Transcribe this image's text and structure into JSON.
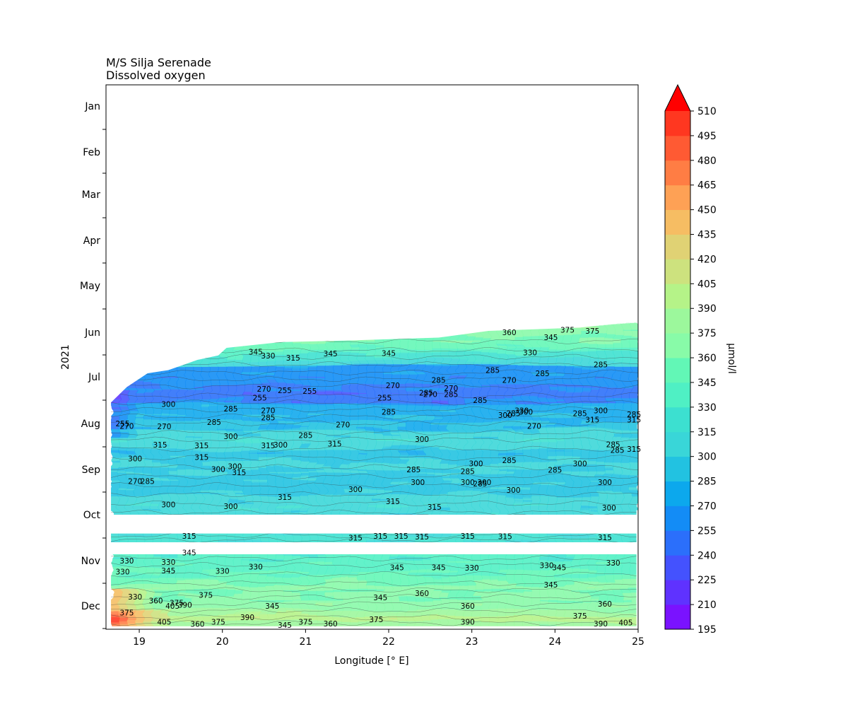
{
  "chart_data": {
    "type": "heatmap",
    "title_line1": "M/S Silja Serenade",
    "title_line2": "Dissolved oxygen",
    "xlabel": "Longitude [° E]",
    "ylabel": "2021",
    "xlim": [
      18.6,
      25.0
    ],
    "x_ticks": [
      "19",
      "20",
      "21",
      "22",
      "23",
      "24",
      "25"
    ],
    "y_ticks": [
      "Jan",
      "Feb",
      "Mar",
      "Apr",
      "May",
      "Jun",
      "Jul",
      "Aug",
      "Sep",
      "Oct",
      "Nov",
      "Dec"
    ],
    "colorbar": {
      "label": "µmol/l",
      "levels": [
        195,
        210,
        225,
        240,
        255,
        270,
        285,
        300,
        315,
        330,
        345,
        360,
        375,
        390,
        405,
        420,
        435,
        450,
        465,
        480,
        495,
        510
      ],
      "extend": "max",
      "colors": [
        "#7a12ff",
        "#5f32ff",
        "#4452fe",
        "#2b6ffb",
        "#138cf6",
        "#0ca8ed",
        "#22c2e1",
        "#39d6d8",
        "#3ce0d0",
        "#4ff0c4",
        "#62f7b6",
        "#88fba8",
        "#9cf89c",
        "#b5f388",
        "#cde27e",
        "#e0d274",
        "#f6bd63",
        "#fea155",
        "#ff7d44",
        "#ff5a33",
        "#ff3720",
        "#ff1410"
      ],
      "extend_color": "#ff0000"
    },
    "data_bands": [
      {
        "period": "Jun-Oct",
        "start_month": 5.0,
        "end_month": 9.0
      },
      {
        "period": "Oct",
        "start_month": 9.4,
        "end_month": 9.6
      },
      {
        "period": "Nov-Dec",
        "start_month": 9.85,
        "end_month": 11.5
      }
    ],
    "contour_labels": [
      {
        "text": "375",
        "lon": 24.15,
        "m": 4.95
      },
      {
        "text": "375",
        "lon": 24.45,
        "m": 4.97
      },
      {
        "text": "360",
        "lon": 23.45,
        "m": 5.0
      },
      {
        "text": "345",
        "lon": 23.95,
        "m": 5.11
      },
      {
        "text": "345",
        "lon": 20.4,
        "m": 5.44
      },
      {
        "text": "330",
        "lon": 20.55,
        "m": 5.52
      },
      {
        "text": "315",
        "lon": 20.85,
        "m": 5.57
      },
      {
        "text": "345",
        "lon": 21.3,
        "m": 5.48
      },
      {
        "text": "345",
        "lon": 22.0,
        "m": 5.47
      },
      {
        "text": "330",
        "lon": 23.7,
        "m": 5.45
      },
      {
        "text": "285",
        "lon": 24.55,
        "m": 5.72
      },
      {
        "text": "285",
        "lon": 23.25,
        "m": 5.85
      },
      {
        "text": "285",
        "lon": 23.85,
        "m": 5.92
      },
      {
        "text": "270",
        "lon": 23.45,
        "m": 6.07
      },
      {
        "text": "285",
        "lon": 22.6,
        "m": 6.07
      },
      {
        "text": "270",
        "lon": 22.75,
        "m": 6.24
      },
      {
        "text": "285",
        "lon": 22.45,
        "m": 6.34
      },
      {
        "text": "270",
        "lon": 22.5,
        "m": 6.37
      },
      {
        "text": "285",
        "lon": 22.75,
        "m": 6.37
      },
      {
        "text": "270",
        "lon": 22.05,
        "m": 6.18
      },
      {
        "text": "255",
        "lon": 21.05,
        "m": 6.3
      },
      {
        "text": "255",
        "lon": 20.75,
        "m": 6.29
      },
      {
        "text": "270",
        "lon": 20.5,
        "m": 6.26
      },
      {
        "text": "255",
        "lon": 20.45,
        "m": 6.45
      },
      {
        "text": "255",
        "lon": 21.95,
        "m": 6.45
      },
      {
        "text": "285",
        "lon": 23.1,
        "m": 6.5
      },
      {
        "text": "285",
        "lon": 20.1,
        "m": 6.68
      },
      {
        "text": "270",
        "lon": 20.55,
        "m": 6.72
      },
      {
        "text": "285",
        "lon": 20.55,
        "m": 6.87
      },
      {
        "text": "285",
        "lon": 22.0,
        "m": 6.75
      },
      {
        "text": "300",
        "lon": 23.4,
        "m": 6.82
      },
      {
        "text": "285",
        "lon": 23.5,
        "m": 6.78
      },
      {
        "text": "330",
        "lon": 23.6,
        "m": 6.72
      },
      {
        "text": "300",
        "lon": 23.65,
        "m": 6.75
      },
      {
        "text": "285",
        "lon": 24.3,
        "m": 6.78
      },
      {
        "text": "300",
        "lon": 24.55,
        "m": 6.72
      },
      {
        "text": "285",
        "lon": 24.95,
        "m": 6.8
      },
      {
        "text": "315",
        "lon": 24.45,
        "m": 6.92
      },
      {
        "text": "315",
        "lon": 24.95,
        "m": 6.92
      },
      {
        "text": "270",
        "lon": 21.45,
        "m": 7.02
      },
      {
        "text": "270",
        "lon": 23.75,
        "m": 7.05
      },
      {
        "text": "300",
        "lon": 19.35,
        "m": 6.58
      },
      {
        "text": "255",
        "lon": 18.8,
        "m": 7.0
      },
      {
        "text": "270",
        "lon": 18.85,
        "m": 7.05
      },
      {
        "text": "270",
        "lon": 19.3,
        "m": 7.06
      },
      {
        "text": "285",
        "lon": 19.9,
        "m": 6.97
      },
      {
        "text": "300",
        "lon": 20.1,
        "m": 7.28
      },
      {
        "text": "285",
        "lon": 21.0,
        "m": 7.25
      },
      {
        "text": "315",
        "lon": 19.25,
        "m": 7.46
      },
      {
        "text": "315",
        "lon": 19.75,
        "m": 7.48
      },
      {
        "text": "315",
        "lon": 20.55,
        "m": 7.48
      },
      {
        "text": "300",
        "lon": 20.7,
        "m": 7.46
      },
      {
        "text": "315",
        "lon": 21.35,
        "m": 7.44
      },
      {
        "text": "300",
        "lon": 22.4,
        "m": 7.34
      },
      {
        "text": "285",
        "lon": 24.7,
        "m": 7.45
      },
      {
        "text": "285",
        "lon": 24.75,
        "m": 7.58
      },
      {
        "text": "315",
        "lon": 24.95,
        "m": 7.55
      },
      {
        "text": "300",
        "lon": 18.95,
        "m": 7.76
      },
      {
        "text": "315",
        "lon": 19.75,
        "m": 7.73
      },
      {
        "text": "300",
        "lon": 19.95,
        "m": 7.99
      },
      {
        "text": "300",
        "lon": 20.15,
        "m": 7.93
      },
      {
        "text": "315",
        "lon": 20.2,
        "m": 8.06
      },
      {
        "text": "285",
        "lon": 22.3,
        "m": 8.0
      },
      {
        "text": "300",
        "lon": 23.05,
        "m": 7.87
      },
      {
        "text": "285",
        "lon": 22.95,
        "m": 8.04
      },
      {
        "text": "285",
        "lon": 23.45,
        "m": 7.8
      },
      {
        "text": "285",
        "lon": 24.0,
        "m": 8.01
      },
      {
        "text": "300",
        "lon": 24.3,
        "m": 7.87
      },
      {
        "text": "270",
        "lon": 18.95,
        "m": 8.26
      },
      {
        "text": "285",
        "lon": 19.1,
        "m": 8.26
      },
      {
        "text": "300",
        "lon": 22.35,
        "m": 8.28
      },
      {
        "text": "300",
        "lon": 22.95,
        "m": 8.28
      },
      {
        "text": "285",
        "lon": 23.1,
        "m": 8.31
      },
      {
        "text": "300",
        "lon": 23.15,
        "m": 8.28
      },
      {
        "text": "300",
        "lon": 24.6,
        "m": 8.28
      },
      {
        "text": "300",
        "lon": 21.6,
        "m": 8.44
      },
      {
        "text": "300",
        "lon": 23.5,
        "m": 8.45
      },
      {
        "text": "315",
        "lon": 20.75,
        "m": 8.61
      },
      {
        "text": "315",
        "lon": 22.05,
        "m": 8.7
      },
      {
        "text": "300",
        "lon": 19.35,
        "m": 8.77
      },
      {
        "text": "300",
        "lon": 20.1,
        "m": 8.81
      },
      {
        "text": "315",
        "lon": 22.55,
        "m": 8.83
      },
      {
        "text": "300",
        "lon": 24.65,
        "m": 8.84
      },
      {
        "text": "315",
        "lon": 19.6,
        "m": 9.46
      },
      {
        "text": "315",
        "lon": 21.6,
        "m": 9.5
      },
      {
        "text": "315",
        "lon": 21.9,
        "m": 9.46
      },
      {
        "text": "315",
        "lon": 22.15,
        "m": 9.46
      },
      {
        "text": "315",
        "lon": 22.4,
        "m": 9.48
      },
      {
        "text": "315",
        "lon": 22.95,
        "m": 9.46
      },
      {
        "text": "315",
        "lon": 23.4,
        "m": 9.47
      },
      {
        "text": "315",
        "lon": 24.6,
        "m": 9.49
      },
      {
        "text": "345",
        "lon": 19.6,
        "m": 9.82
      },
      {
        "text": "330",
        "lon": 18.85,
        "m": 10.0
      },
      {
        "text": "330",
        "lon": 19.35,
        "m": 10.03
      },
      {
        "text": "330",
        "lon": 18.8,
        "m": 10.24
      },
      {
        "text": "345",
        "lon": 19.35,
        "m": 10.22
      },
      {
        "text": "330",
        "lon": 20.0,
        "m": 10.23
      },
      {
        "text": "330",
        "lon": 20.4,
        "m": 10.13
      },
      {
        "text": "345",
        "lon": 22.1,
        "m": 10.15
      },
      {
        "text": "345",
        "lon": 22.6,
        "m": 10.15
      },
      {
        "text": "330",
        "lon": 23.0,
        "m": 10.16
      },
      {
        "text": "330",
        "lon": 23.9,
        "m": 10.1
      },
      {
        "text": "345",
        "lon": 24.05,
        "m": 10.15
      },
      {
        "text": "330",
        "lon": 24.7,
        "m": 10.05
      },
      {
        "text": "345",
        "lon": 23.95,
        "m": 10.53
      },
      {
        "text": "360",
        "lon": 22.4,
        "m": 10.72
      },
      {
        "text": "375",
        "lon": 19.8,
        "m": 10.76
      },
      {
        "text": "345",
        "lon": 21.9,
        "m": 10.81
      },
      {
        "text": "330",
        "lon": 18.95,
        "m": 10.8
      },
      {
        "text": "360",
        "lon": 19.2,
        "m": 10.88
      },
      {
        "text": "375",
        "lon": 19.45,
        "m": 10.93
      },
      {
        "text": "405",
        "lon": 19.4,
        "m": 11.0
      },
      {
        "text": "390",
        "lon": 19.55,
        "m": 10.98
      },
      {
        "text": "345",
        "lon": 20.6,
        "m": 11.0
      },
      {
        "text": "360",
        "lon": 22.95,
        "m": 11.0
      },
      {
        "text": "360",
        "lon": 24.6,
        "m": 10.95
      },
      {
        "text": "375",
        "lon": 18.85,
        "m": 11.15
      },
      {
        "text": "375",
        "lon": 24.3,
        "m": 11.22
      },
      {
        "text": "390",
        "lon": 20.3,
        "m": 11.25
      },
      {
        "text": "375",
        "lon": 19.95,
        "m": 11.35
      },
      {
        "text": "405",
        "lon": 19.3,
        "m": 11.35
      },
      {
        "text": "360",
        "lon": 19.7,
        "m": 11.4
      },
      {
        "text": "345",
        "lon": 20.75,
        "m": 11.42
      },
      {
        "text": "375",
        "lon": 21.0,
        "m": 11.35
      },
      {
        "text": "360",
        "lon": 21.3,
        "m": 11.39
      },
      {
        "text": "375",
        "lon": 21.85,
        "m": 11.3
      },
      {
        "text": "390",
        "lon": 22.95,
        "m": 11.35
      },
      {
        "text": "390",
        "lon": 24.55,
        "m": 11.39
      },
      {
        "text": "405",
        "lon": 24.85,
        "m": 11.37
      }
    ]
  }
}
